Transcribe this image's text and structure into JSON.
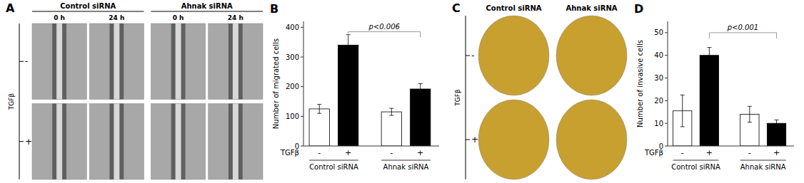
{
  "chart_data": [
    {
      "type": "image",
      "title": "A",
      "marker": "rect",
      "groups": [
        "Control siRNA",
        "Ahnak siRNA"
      ],
      "categories": [
        "0 h",
        "24 h",
        "0 h",
        "24 h"
      ],
      "ylabel": "TGFβ",
      "rows": [
        "-",
        "+"
      ]
    },
    {
      "type": "bar",
      "title": "B",
      "ylabel": "Number of migrated cells",
      "xlabel": "TGFβ",
      "groups": [
        "Control siRNA",
        "Ahnak siRNA"
      ],
      "categories": [
        "-",
        "+",
        "-",
        "+"
      ],
      "values": [
        125,
        340,
        115,
        192
      ],
      "errors": [
        15,
        35,
        12,
        18
      ],
      "colors": [
        "white",
        "black",
        "white",
        "black"
      ],
      "ylim": [
        0,
        420
      ],
      "yticks": [
        0,
        100,
        200,
        300,
        400
      ],
      "annotations": [
        {
          "text": "p<0.006",
          "y": 385
        }
      ]
    },
    {
      "type": "image",
      "title": "C",
      "marker": "ellipse",
      "groups": [
        "Control siRNA",
        "Ahnak siRNA"
      ],
      "ylabel": "TGFβ",
      "rows": [
        "-",
        "+"
      ]
    },
    {
      "type": "bar",
      "title": "D",
      "ylabel": "Number of invasive cells",
      "xlabel": "TGFβ",
      "groups": [
        "Control siRNA",
        "Ahnak siRNA"
      ],
      "categories": [
        "-",
        "+",
        "-",
        "+"
      ],
      "values": [
        15.5,
        40,
        14,
        10
      ],
      "errors": [
        7,
        3.5,
        3.5,
        1.5
      ],
      "colors": [
        "white",
        "black",
        "white",
        "black"
      ],
      "ylim": [
        0,
        55
      ],
      "yticks": [
        0,
        10,
        20,
        30,
        40,
        50
      ],
      "annotations": [
        {
          "text": "p<0.001",
          "y": 50
        }
      ]
    }
  ]
}
